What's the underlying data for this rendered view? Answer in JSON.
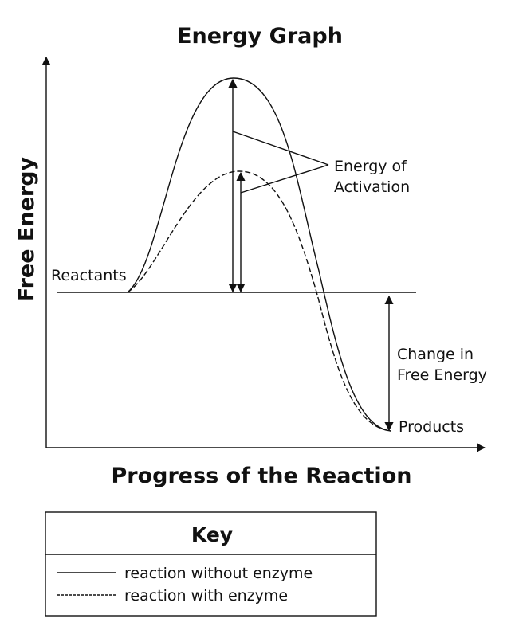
{
  "title": "Energy Graph",
  "y_axis_label": "Free Energy",
  "x_axis_label": "Progress of the Reaction",
  "labels": {
    "reactants": "Reactants",
    "products": "Products",
    "activation_line1": "Energy of",
    "activation_line2": "Activation",
    "change_line1": "Change in",
    "change_line2": "Free Energy"
  },
  "key": {
    "title": "Key",
    "items": [
      {
        "line_style": "solid",
        "label": "reaction without enzyme"
      },
      {
        "line_style": "dashed",
        "label": "reaction with enzyme"
      }
    ]
  },
  "colors": {
    "ink": "#111111",
    "background": "#ffffff"
  }
}
